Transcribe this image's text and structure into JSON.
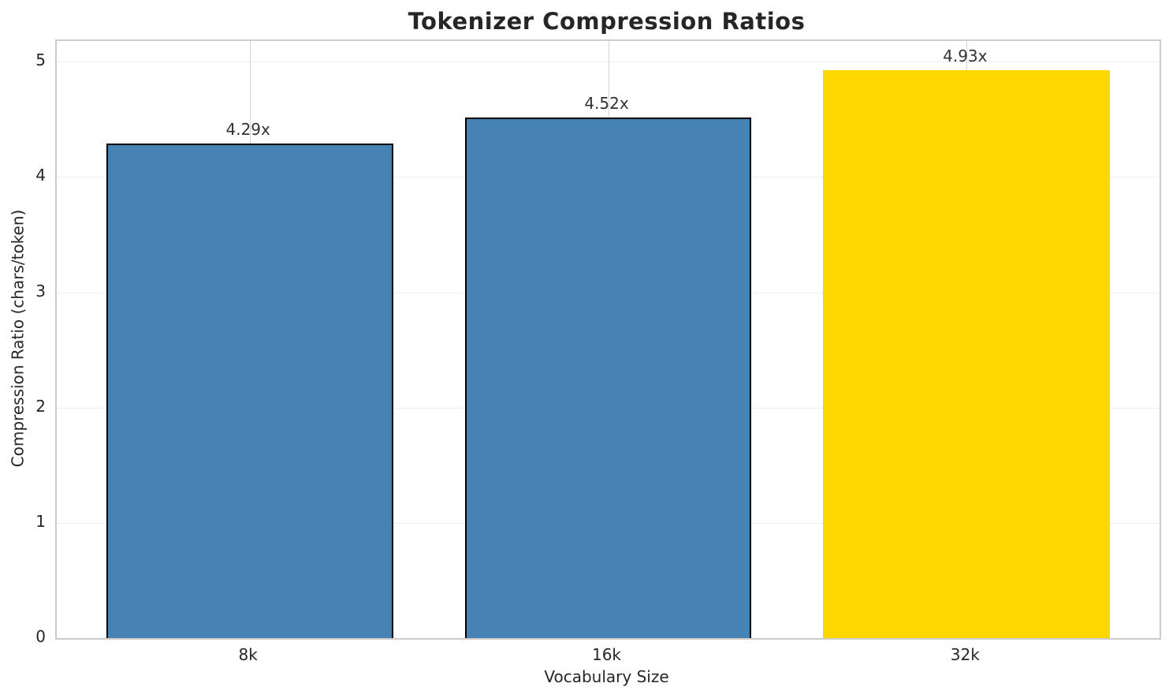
{
  "chart_data": {
    "type": "bar",
    "title": "Tokenizer Compression Ratios",
    "xlabel": "Vocabulary Size",
    "ylabel": "Compression Ratio (chars/token)",
    "categories": [
      "8k",
      "16k",
      "32k"
    ],
    "values": [
      4.29,
      4.52,
      4.93
    ],
    "value_labels": [
      "4.29x",
      "4.52x",
      "4.93x"
    ],
    "bar_colors": [
      "#4682B4",
      "#4682B4",
      "#FFD700"
    ],
    "bar_edges": [
      true,
      true,
      false
    ],
    "series_color": "#4682B4",
    "highlight_color": "#FFD700",
    "edge_color": "#000000",
    "yticks": [
      0,
      1,
      2,
      3,
      4,
      5
    ],
    "ylim": [
      0,
      5.18
    ],
    "grid": "on",
    "legend": "none"
  }
}
